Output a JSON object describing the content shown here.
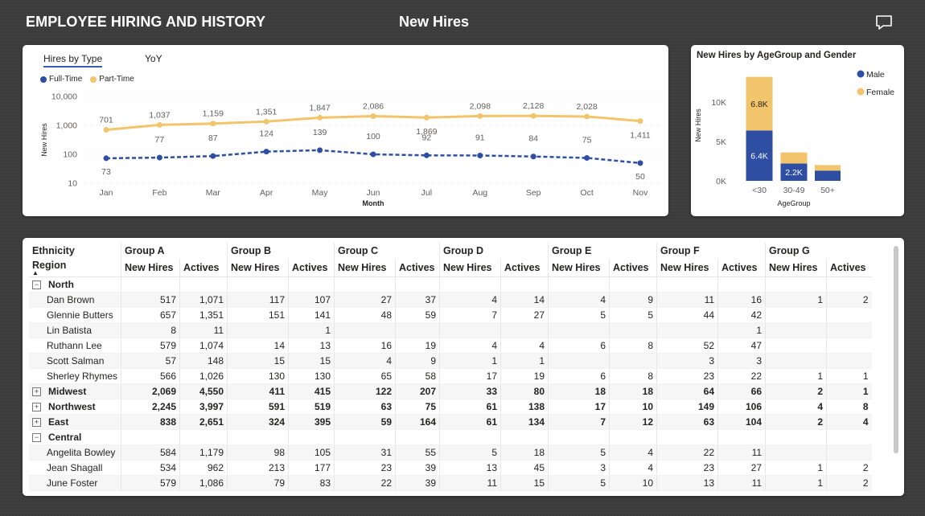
{
  "header": {
    "title": "EMPLOYEE HIRING AND HISTORY",
    "page_name": "New Hires",
    "comment_icon": "comment-icon"
  },
  "line_card": {
    "tabs": [
      {
        "label": "Hires by Type",
        "active": true
      },
      {
        "label": "YoY",
        "active": false
      }
    ],
    "legend": [
      {
        "label": "Full-Time",
        "color": "#2e4ea4"
      },
      {
        "label": "Part-Time",
        "color": "#f2c46b"
      }
    ]
  },
  "chart_data": [
    {
      "type": "line",
      "x": [
        "Jan",
        "Feb",
        "Mar",
        "Apr",
        "May",
        "Jun",
        "Jul",
        "Aug",
        "Sep",
        "Oct",
        "Nov"
      ],
      "xlabel": "Month",
      "ylabel": "New Hires",
      "yscale": "log",
      "ylim": [
        10,
        10000
      ],
      "yticks": [
        "10,000",
        "1,000",
        "100",
        "10"
      ],
      "grid": true,
      "legend": "top-left",
      "series": [
        {
          "name": "Full-Time",
          "color": "#2e4ea4",
          "style": "dashed",
          "values": [
            73,
            77,
            87,
            124,
            139,
            100,
            92,
            91,
            84,
            75,
            50
          ],
          "labels": [
            "73",
            "77",
            "87",
            "124",
            "139",
            "100",
            "92",
            "91",
            "84",
            "75",
            "50"
          ]
        },
        {
          "name": "Part-Time",
          "color": "#f2c46b",
          "style": "solid",
          "values": [
            701,
            1037,
            1159,
            1351,
            1847,
            2086,
            1869,
            2098,
            2128,
            2028,
            1411
          ],
          "labels": [
            "701",
            "1,037",
            "1,159",
            "1,351",
            "1,847",
            "2,086",
            "1,869",
            "2,098",
            "2,128",
            "2,028",
            "1,411"
          ]
        }
      ]
    },
    {
      "type": "bar",
      "stacked": true,
      "title": "New Hires by AgeGroup and Gender",
      "categories": [
        "<30",
        "30-49",
        "50+"
      ],
      "xlabel": "AgeGroup",
      "ylabel": "New Hires",
      "ylim": [
        0,
        15000
      ],
      "yticks": [
        "10K",
        "5K",
        "0K"
      ],
      "legend": "top-right",
      "series": [
        {
          "name": "Male",
          "color": "#2e4ea4",
          "values": [
            6400,
            2200,
            1300
          ],
          "labels": [
            "6.4K",
            "2.2K",
            ""
          ]
        },
        {
          "name": "Female",
          "color": "#f2c46b",
          "values": [
            6800,
            1400,
            700
          ],
          "labels": [
            "6.8K",
            "",
            ""
          ]
        }
      ]
    }
  ],
  "table": {
    "corner_top": "Ethnicity",
    "corner_bottom": "Region",
    "groups": [
      "Group A",
      "Group B",
      "Group C",
      "Group D",
      "Group E",
      "Group F",
      "Group G"
    ],
    "measures": [
      "New Hires",
      "Actives"
    ],
    "rows": [
      {
        "type": "region",
        "label": "North",
        "expander": "⊟",
        "values": [
          "",
          "",
          "",
          "",
          "",
          "",
          "",
          "",
          "",
          "",
          "",
          "",
          "",
          ""
        ]
      },
      {
        "type": "person",
        "label": "Dan Brown",
        "values": [
          "517",
          "1,071",
          "117",
          "107",
          "27",
          "37",
          "4",
          "14",
          "4",
          "9",
          "11",
          "16",
          "1",
          "2"
        ]
      },
      {
        "type": "person",
        "label": "Glennie Butters",
        "values": [
          "657",
          "1,351",
          "151",
          "141",
          "48",
          "59",
          "7",
          "27",
          "5",
          "5",
          "44",
          "42",
          "",
          ""
        ]
      },
      {
        "type": "person",
        "label": "Lin Batista",
        "values": [
          "8",
          "11",
          "",
          "1",
          "",
          "",
          "",
          "",
          "",
          "",
          "",
          "1",
          "",
          ""
        ]
      },
      {
        "type": "person",
        "label": "Ruthann Lee",
        "values": [
          "579",
          "1,074",
          "14",
          "13",
          "16",
          "19",
          "4",
          "4",
          "6",
          "8",
          "52",
          "47",
          "",
          ""
        ]
      },
      {
        "type": "person",
        "label": "Scott Salman",
        "values": [
          "57",
          "148",
          "15",
          "15",
          "4",
          "9",
          "1",
          "1",
          "",
          "",
          "3",
          "3",
          "",
          ""
        ]
      },
      {
        "type": "person",
        "label": "Sherley Rhymes",
        "values": [
          "566",
          "1,026",
          "130",
          "130",
          "65",
          "58",
          "17",
          "19",
          "6",
          "8",
          "23",
          "22",
          "1",
          "1"
        ]
      },
      {
        "type": "region",
        "label": "Midwest",
        "expander": "⊞",
        "values": [
          "2,069",
          "4,550",
          "411",
          "415",
          "122",
          "207",
          "33",
          "80",
          "18",
          "18",
          "64",
          "66",
          "2",
          "1"
        ]
      },
      {
        "type": "region",
        "label": "Northwest",
        "expander": "⊞",
        "values": [
          "2,245",
          "3,997",
          "591",
          "519",
          "63",
          "75",
          "61",
          "138",
          "17",
          "10",
          "149",
          "106",
          "4",
          "8"
        ]
      },
      {
        "type": "region",
        "label": "East",
        "expander": "⊞",
        "values": [
          "838",
          "2,651",
          "324",
          "395",
          "59",
          "164",
          "61",
          "134",
          "7",
          "12",
          "63",
          "104",
          "2",
          "4"
        ]
      },
      {
        "type": "region",
        "label": "Central",
        "expander": "⊟",
        "values": [
          "",
          "",
          "",
          "",
          "",
          "",
          "",
          "",
          "",
          "",
          "",
          "",
          "",
          ""
        ]
      },
      {
        "type": "person",
        "label": "Angelita Bowley",
        "values": [
          "584",
          "1,179",
          "98",
          "105",
          "31",
          "55",
          "5",
          "18",
          "5",
          "4",
          "22",
          "11",
          "",
          ""
        ]
      },
      {
        "type": "person",
        "label": "Jean Shagall",
        "values": [
          "534",
          "962",
          "213",
          "177",
          "23",
          "39",
          "13",
          "45",
          "3",
          "4",
          "23",
          "27",
          "1",
          "2"
        ]
      },
      {
        "type": "person",
        "label": "June Foster",
        "values": [
          "579",
          "1,086",
          "79",
          "83",
          "22",
          "39",
          "11",
          "15",
          "5",
          "10",
          "13",
          "11",
          "1",
          "2"
        ]
      }
    ]
  }
}
